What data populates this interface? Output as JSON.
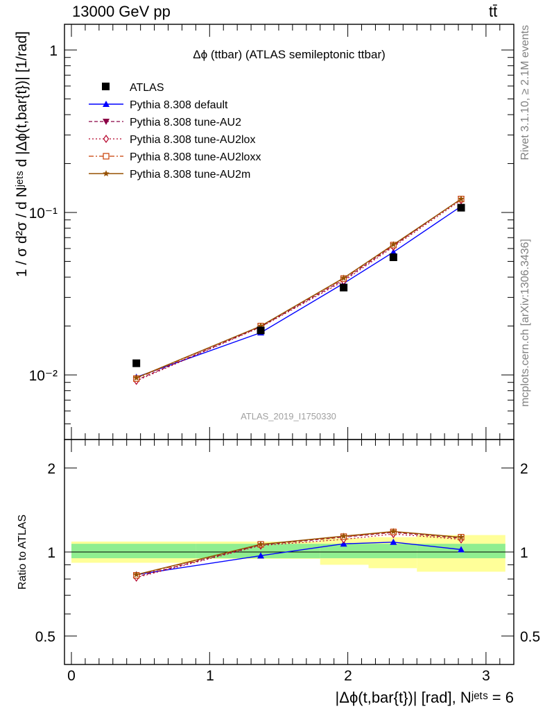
{
  "header": {
    "energy_label": "13000 GeV pp",
    "process_label": "tt̄"
  },
  "side_labels": {
    "rivet": "Rivet 3.1.10, ≥ 2.1M events",
    "source": "mcplots.cern.ch [arXiv:1306.3436]"
  },
  "watermark": "ATLAS_2019_I1750330",
  "chart_data": [
    {
      "type": "line",
      "panel": "main",
      "title": "Δϕ (ttbar) (ATLAS semileptonic ttbar)",
      "ylabel": "1 / σ d²σ / d Nʲᵉᵗˢ d |Δϕ(t,bar{t})| [1/rad]",
      "xlabel": "",
      "y_scale": "log",
      "xlim": [
        -0.1,
        3.2
      ],
      "ylim": [
        0.004,
        1.5
      ],
      "y_tick_labels": [
        "10⁻²",
        "10⁻¹",
        "1"
      ],
      "x": [
        0.47,
        1.37,
        1.97,
        2.33,
        2.82
      ],
      "data": {
        "name": "ATLAS",
        "values": [
          0.0118,
          0.0188,
          0.0345,
          0.053,
          0.107
        ]
      },
      "series": [
        {
          "name": "Pythia 8.308 default",
          "color": "#0000ff",
          "values": [
            0.0097,
            0.0182,
            0.0366,
            0.057,
            0.109
          ]
        },
        {
          "name": "Pythia 8.308 tune-AU2",
          "color": "#8b0045",
          "values": [
            0.0093,
            0.0198,
            0.0385,
            0.0625,
            0.121
          ]
        },
        {
          "name": "Pythia 8.308 tune-AU2lox",
          "color": "#b40028",
          "values": [
            0.0092,
            0.0197,
            0.0378,
            0.0615,
            0.119
          ]
        },
        {
          "name": "Pythia 8.308 tune-AU2loxx",
          "color": "#c83c00",
          "values": [
            0.0095,
            0.02,
            0.0392,
            0.063,
            0.121
          ]
        },
        {
          "name": "Pythia 8.308 tune-AU2m",
          "color": "#965000",
          "values": [
            0.0096,
            0.02,
            0.0395,
            0.0635,
            0.121
          ]
        }
      ]
    },
    {
      "type": "line",
      "panel": "ratio",
      "ylabel": "Ratio to ATLAS",
      "xlabel": "|Δϕ(t,bar{t})| [rad], Nʲᵉᵗˢ = 6",
      "y_scale": "log",
      "xlim": [
        -0.1,
        3.2
      ],
      "ylim": [
        0.4,
        2.4
      ],
      "y_tick_labels": [
        "0.5",
        "1",
        "2"
      ],
      "x_tick_labels": [
        "0",
        "1",
        "2",
        "3"
      ],
      "x": [
        0.47,
        1.37,
        1.97,
        2.33,
        2.82
      ],
      "bands": {
        "edges": [
          0.0,
          0.9,
          1.8,
          2.15,
          2.5,
          3.14
        ],
        "inner": [
          [
            0.95,
            1.07
          ],
          [
            0.95,
            1.07
          ],
          [
            0.95,
            1.07
          ],
          [
            0.95,
            1.07
          ],
          [
            0.95,
            1.07
          ]
        ],
        "outer": [
          [
            0.915,
            1.09
          ],
          [
            0.945,
            1.09
          ],
          [
            0.9,
            1.12
          ],
          [
            0.875,
            1.13
          ],
          [
            0.85,
            1.15
          ]
        ]
      },
      "series": [
        {
          "name": "Pythia 8.308 default",
          "values": [
            0.83,
            0.97,
            1.07,
            1.085,
            1.02
          ]
        },
        {
          "name": "Pythia 8.308 tune-AU2",
          "values": [
            0.815,
            1.06,
            1.13,
            1.175,
            1.12
          ]
        },
        {
          "name": "Pythia 8.308 tune-AU2lox",
          "values": [
            0.81,
            1.055,
            1.11,
            1.16,
            1.11
          ]
        },
        {
          "name": "Pythia 8.308 tune-AU2loxx",
          "values": [
            0.825,
            1.065,
            1.135,
            1.18,
            1.13
          ]
        },
        {
          "name": "Pythia 8.308 tune-AU2m",
          "values": [
            0.83,
            1.065,
            1.14,
            1.185,
            1.13
          ]
        }
      ]
    }
  ]
}
